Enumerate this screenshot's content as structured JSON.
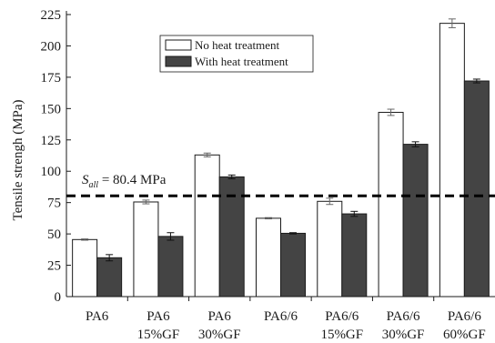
{
  "chart_data": {
    "type": "bar",
    "ylabel": "Tensile strengh (MPa)",
    "ylim": [
      0,
      225
    ],
    "yticks": [
      0,
      25,
      50,
      75,
      100,
      125,
      150,
      175,
      200,
      225
    ],
    "categories": [
      [
        "PA6"
      ],
      [
        "PA6",
        "15%GF"
      ],
      [
        "PA6",
        "30%GF"
      ],
      [
        "PA6/6"
      ],
      [
        "PA6/6",
        "15%GF"
      ],
      [
        "PA6/6",
        "30%GF"
      ],
      [
        "PA6/6",
        "60%GF"
      ]
    ],
    "series": [
      {
        "name": "No heat treatment",
        "color": "#ffffff",
        "values": [
          45.5,
          75.5,
          113,
          62.5,
          76,
          147,
          218
        ],
        "errors": [
          0.5,
          1.5,
          1.5,
          0.5,
          2.5,
          2.5,
          3.5
        ]
      },
      {
        "name": "With heat treatment",
        "color": "#444444",
        "values": [
          31,
          48,
          95.5,
          50.5,
          66,
          121.5,
          172
        ],
        "errors": [
          2.5,
          3,
          1.5,
          0.5,
          2,
          2,
          1.5
        ]
      }
    ],
    "reference_line": {
      "value": 80.4,
      "symbol": "S",
      "subscript": "all",
      "text": " = 80.4 MPa",
      "style": "dashed"
    },
    "legend_position": "top-center"
  }
}
